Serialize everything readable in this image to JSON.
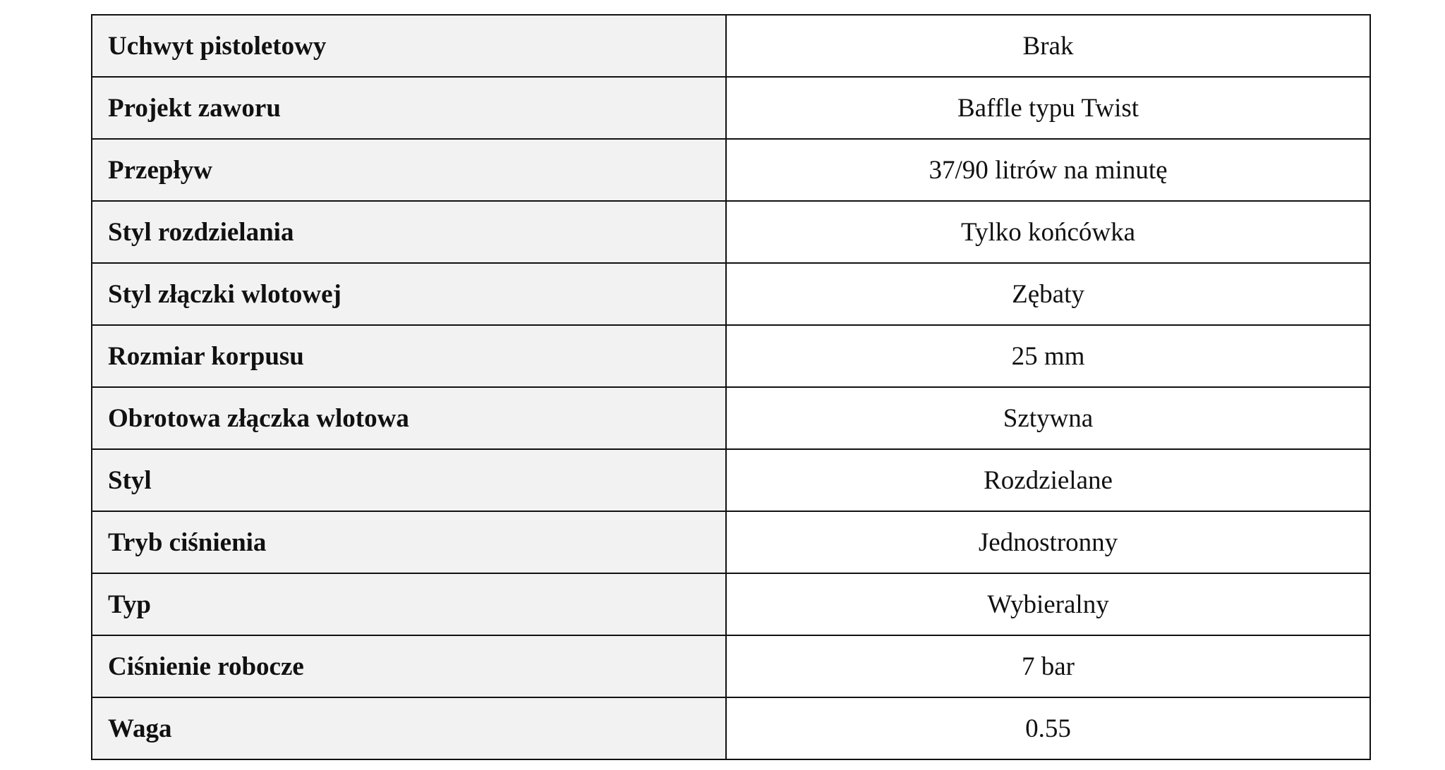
{
  "spec_table": {
    "rows": [
      {
        "label": "Uchwyt pistoletowy",
        "value": "Brak"
      },
      {
        "label": "Projekt zaworu",
        "value": "Baffle typu Twist"
      },
      {
        "label": "Przepływ",
        "value": "37/90 litrów na minutę"
      },
      {
        "label": "Styl rozdzielania",
        "value": "Tylko końcówka"
      },
      {
        "label": "Styl złączki wlotowej",
        "value": "Zębaty"
      },
      {
        "label": "Rozmiar korpusu",
        "value": "25 mm"
      },
      {
        "label": "Obrotowa złączka wlotowa",
        "value": "Sztywna"
      },
      {
        "label": "Styl",
        "value": "Rozdzielane"
      },
      {
        "label": "Tryb ciśnienia",
        "value": "Jednostronny"
      },
      {
        "label": "Typ",
        "value": "Wybieralny"
      },
      {
        "label": "Ciśnienie robocze",
        "value": "7 bar"
      },
      {
        "label": "Waga",
        "value": "0.55"
      }
    ]
  }
}
